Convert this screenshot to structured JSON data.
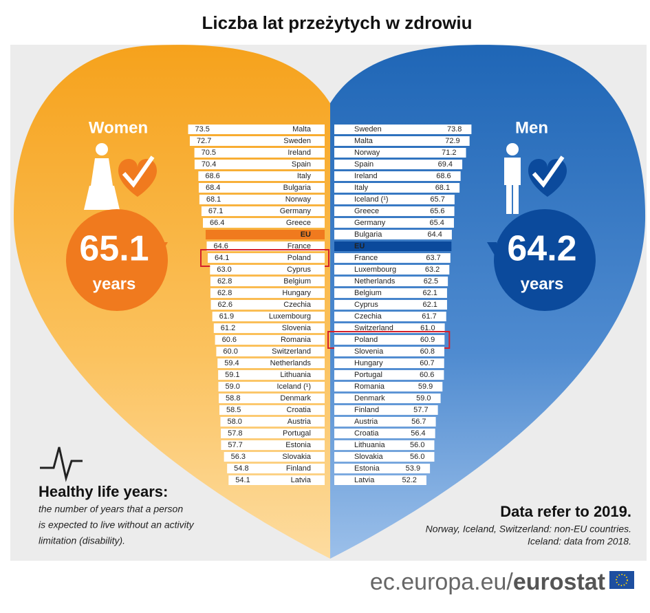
{
  "title": "Liczba lat przeżytych w zdrowiu",
  "chart_data": [
    {
      "type": "bar",
      "title": "Women",
      "unit_label": "years",
      "side": "left",
      "color": "#ffffff",
      "aggregate": "EU",
      "aggregate_color": "#f07a1e",
      "highlight": "Poland",
      "xlim": [
        8,
        74
      ],
      "categories": [
        "Malta",
        "Sweden",
        "Ireland",
        "Spain",
        "Italy",
        "Bulgaria",
        "Norway",
        "Germany",
        "Greece",
        "EU",
        "France",
        "Poland",
        "Cyprus",
        "Belgium",
        "Hungary",
        "Czechia",
        "Luxembourg",
        "Slovenia",
        "Romania",
        "Switzerland",
        "Netherlands",
        "Lithuania",
        "Iceland (¹)",
        "Denmark",
        "Croatia",
        "Austria",
        "Portugal",
        "Estonia",
        "Slovakia",
        "Finland",
        "Latvia"
      ],
      "values": [
        73.5,
        72.7,
        70.5,
        70.4,
        68.6,
        68.4,
        68.1,
        67.1,
        66.4,
        65.1,
        64.6,
        64.1,
        63.0,
        62.8,
        62.8,
        62.6,
        61.9,
        61.2,
        60.6,
        60.0,
        59.4,
        59.1,
        59.0,
        58.8,
        58.5,
        58.0,
        57.8,
        57.7,
        56.3,
        54.8,
        54.1
      ],
      "value_labels": [
        "73.5",
        "72.7",
        "70.5",
        "70.4",
        "68.6",
        "68.4",
        "68.1",
        "67.1",
        "66.4",
        "65.1",
        "64.6",
        "64.1",
        "63.0",
        "62.8",
        "62.8",
        "62.6",
        "61.9",
        "61.2",
        "60.6",
        "60.0",
        "59.4",
        "59.1",
        "59.0",
        "58.8",
        "58.5",
        "58.0",
        "57.8",
        "57.7",
        "56.3",
        "54.8",
        "54.1"
      ]
    },
    {
      "type": "bar",
      "title": "Men",
      "unit_label": "years",
      "side": "right",
      "color": "#ffffff",
      "aggregate": "EU",
      "aggregate_color": "#0b4a9c",
      "highlight": "Poland",
      "xlim": [
        8,
        74
      ],
      "categories": [
        "Sweden",
        "Malta",
        "Norway",
        "Spain",
        "Ireland",
        "Italy",
        "Iceland (¹)",
        "Greece",
        "Germany",
        "Bulgaria",
        "EU",
        "France",
        "Luxembourg",
        "Netherlands",
        "Belgium",
        "Cyprus",
        "Czechia",
        "Switzerland",
        "Poland",
        "Slovenia",
        "Hungary",
        "Portugal",
        "Romania",
        "Denmark",
        "Finland",
        "Austria",
        "Croatia",
        "Lithuania",
        "Slovakia",
        "Estonia",
        "Latvia"
      ],
      "values": [
        73.8,
        72.9,
        71.2,
        69.4,
        68.6,
        68.1,
        65.7,
        65.6,
        65.4,
        64.4,
        64.2,
        63.7,
        63.2,
        62.5,
        62.1,
        62.1,
        61.7,
        61.0,
        60.9,
        60.8,
        60.7,
        60.6,
        59.9,
        59.0,
        57.7,
        56.7,
        56.4,
        56.0,
        56.0,
        53.9,
        52.2
      ],
      "value_labels": [
        "73.8",
        "72.9",
        "71.2",
        "69.4",
        "68.6",
        "68.1",
        "65.7",
        "65.6",
        "65.4",
        "64.4",
        "64.2",
        "63.7",
        "63.2",
        "62.5",
        "62.1",
        "62.1",
        "61.7",
        "61.0",
        "60.9",
        "60.8",
        "60.7",
        "60.6",
        "59.9",
        "59.0",
        "57.7",
        "56.7",
        "56.4",
        "56.0",
        "56.0",
        "53.9",
        "52.2"
      ]
    }
  ],
  "definition": {
    "title": "Healthy life years:",
    "lines": [
      "the number of years that a person",
      "is expected to live without an activity",
      "limitation (disability)."
    ]
  },
  "note": {
    "title": "Data refer to 2019.",
    "lines": [
      "Norway, Iceland, Switzerland: non-EU countries.",
      "Iceland: data from 2018."
    ]
  },
  "source": {
    "site": "ec.europa.eu/",
    "brand": "eurostat"
  }
}
